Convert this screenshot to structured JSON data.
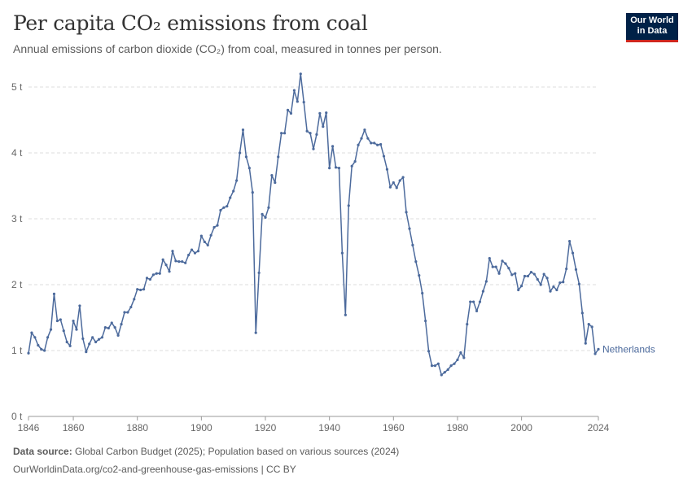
{
  "header": {
    "title": "Per capita CO₂ emissions from coal",
    "subtitle": "Annual emissions of carbon dioxide (CO₂) from coal, measured in tonnes per person."
  },
  "logo": {
    "line1": "Our World",
    "line2": "in Data"
  },
  "footer": {
    "source_label": "Data source:",
    "source_text": "Global Carbon Budget (2025); Population based on various sources (2024)",
    "url_text": "OurWorldinData.org/co2-and-greenhouse-gas-emissions | CC BY"
  },
  "chart_data": {
    "type": "line",
    "title": "Per capita CO₂ emissions from coal",
    "subtitle": "Annual emissions of carbon dioxide (CO₂) from coal, measured in tonnes per person.",
    "xlim": [
      1846,
      2024
    ],
    "ylim": [
      0,
      5.2
    ],
    "x_ticks": [
      1846,
      1860,
      1880,
      1900,
      1920,
      1940,
      1960,
      1980,
      2000,
      2024
    ],
    "y_ticks": [
      0,
      1,
      2,
      3,
      4,
      5
    ],
    "y_tick_labels": [
      "0 t",
      "1 t",
      "2 t",
      "3 t",
      "4 t",
      "5 t"
    ],
    "grid": "horizontal dashed",
    "line_color": "#4c6a9c",
    "series": [
      {
        "name": "Netherlands",
        "x": [
          1846,
          1847,
          1848,
          1849,
          1850,
          1851,
          1852,
          1853,
          1854,
          1855,
          1856,
          1857,
          1858,
          1859,
          1860,
          1861,
          1862,
          1863,
          1864,
          1865,
          1866,
          1867,
          1868,
          1869,
          1870,
          1871,
          1872,
          1873,
          1874,
          1875,
          1876,
          1877,
          1878,
          1879,
          1880,
          1881,
          1882,
          1883,
          1884,
          1885,
          1886,
          1887,
          1888,
          1889,
          1890,
          1891,
          1892,
          1893,
          1894,
          1895,
          1896,
          1897,
          1898,
          1899,
          1900,
          1901,
          1902,
          1903,
          1904,
          1905,
          1906,
          1907,
          1908,
          1909,
          1910,
          1911,
          1912,
          1913,
          1914,
          1915,
          1916,
          1917,
          1918,
          1919,
          1920,
          1921,
          1922,
          1923,
          1924,
          1925,
          1926,
          1927,
          1928,
          1929,
          1930,
          1931,
          1932,
          1933,
          1934,
          1935,
          1936,
          1937,
          1938,
          1939,
          1940,
          1941,
          1942,
          1943,
          1944,
          1945,
          1946,
          1947,
          1948,
          1949,
          1950,
          1951,
          1952,
          1953,
          1954,
          1955,
          1956,
          1957,
          1958,
          1959,
          1960,
          1961,
          1962,
          1963,
          1964,
          1965,
          1966,
          1967,
          1968,
          1969,
          1970,
          1971,
          1972,
          1973,
          1974,
          1975,
          1976,
          1977,
          1978,
          1979,
          1980,
          1981,
          1982,
          1983,
          1984,
          1985,
          1986,
          1987,
          1988,
          1989,
          1990,
          1991,
          1992,
          1993,
          1994,
          1995,
          1996,
          1997,
          1998,
          1999,
          2000,
          2001,
          2002,
          2003,
          2004,
          2005,
          2006,
          2007,
          2008,
          2009,
          2010,
          2011,
          2012,
          2013,
          2014,
          2015,
          2016,
          2017,
          2018,
          2019,
          2020,
          2021,
          2022,
          2023,
          2024
        ],
        "values": [
          0.96,
          1.27,
          1.2,
          1.08,
          1.02,
          1.0,
          1.2,
          1.32,
          1.86,
          1.45,
          1.47,
          1.3,
          1.13,
          1.07,
          1.45,
          1.32,
          1.68,
          1.18,
          0.98,
          1.1,
          1.2,
          1.13,
          1.17,
          1.2,
          1.35,
          1.34,
          1.42,
          1.35,
          1.23,
          1.4,
          1.58,
          1.58,
          1.66,
          1.78,
          1.93,
          1.92,
          1.93,
          2.1,
          2.08,
          2.15,
          2.17,
          2.17,
          2.38,
          2.3,
          2.2,
          2.51,
          2.36,
          2.35,
          2.35,
          2.33,
          2.45,
          2.53,
          2.48,
          2.51,
          2.74,
          2.65,
          2.6,
          2.75,
          2.87,
          2.9,
          3.13,
          3.17,
          3.19,
          3.32,
          3.42,
          3.58,
          4.0,
          4.35,
          3.94,
          3.77,
          3.4,
          1.27,
          2.18,
          3.07,
          3.02,
          3.17,
          3.66,
          3.55,
          3.94,
          4.3,
          4.3,
          4.65,
          4.6,
          4.95,
          4.78,
          5.2,
          4.77,
          4.33,
          4.3,
          4.06,
          4.28,
          4.6,
          4.4,
          4.61,
          3.77,
          4.1,
          3.78,
          3.77,
          2.48,
          1.54,
          3.2,
          3.8,
          3.87,
          4.12,
          4.22,
          4.35,
          4.22,
          4.15,
          4.15,
          4.12,
          4.13,
          3.95,
          3.75,
          3.48,
          3.55,
          3.47,
          3.58,
          3.63,
          3.1,
          2.85,
          2.6,
          2.35,
          2.14,
          1.87,
          1.45,
          0.99,
          0.77,
          0.77,
          0.8,
          0.63,
          0.67,
          0.71,
          0.77,
          0.8,
          0.86,
          0.97,
          0.89,
          1.4,
          1.74,
          1.74,
          1.6,
          1.74,
          1.9,
          2.05,
          2.4,
          2.27,
          2.27,
          2.17,
          2.36,
          2.32,
          2.25,
          2.15,
          2.17,
          1.92,
          1.98,
          2.13,
          2.13,
          2.19,
          2.16,
          2.08,
          2.0,
          2.16,
          2.1,
          1.9,
          1.97,
          1.92,
          2.03,
          2.04,
          2.24,
          2.66,
          2.48,
          2.23,
          2.01,
          1.57,
          1.11,
          1.4,
          1.36,
          0.95,
          1.02
        ]
      }
    ]
  }
}
